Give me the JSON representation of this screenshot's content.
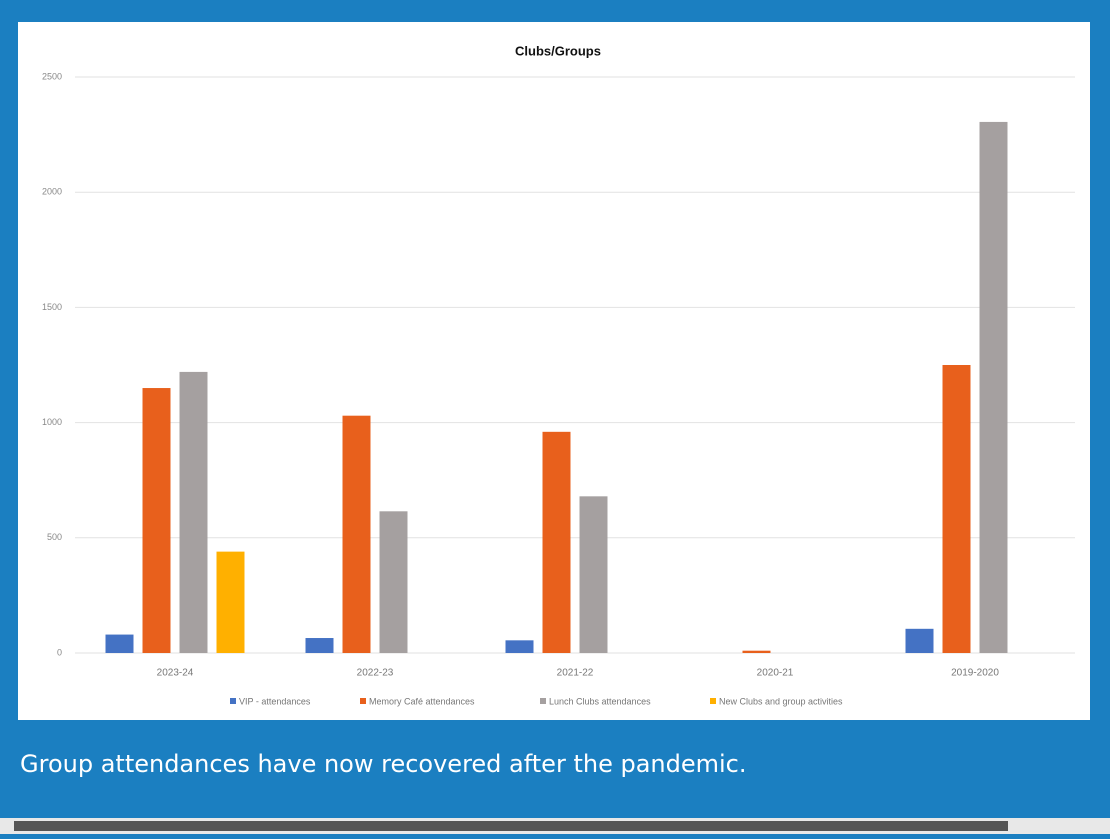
{
  "chart_data": {
    "type": "bar",
    "title": "Clubs/Groups",
    "categories": [
      "2023-24",
      "2022-23",
      "2021-22",
      "2020-21",
      "2019-2020"
    ],
    "series": [
      {
        "name": "VIP - attendances",
        "color": "#4472c4",
        "values": [
          80,
          65,
          55,
          null,
          105
        ]
      },
      {
        "name": "Memory Café attendances",
        "color": "#e8601c",
        "values": [
          1150,
          1030,
          960,
          10,
          1250
        ]
      },
      {
        "name": "Lunch Clubs attendances",
        "color": "#a5a0a0",
        "values": [
          1220,
          615,
          680,
          null,
          2305
        ]
      },
      {
        "name": "New Clubs and group activities",
        "color": "#ffb000",
        "values": [
          440,
          null,
          null,
          null,
          null
        ]
      }
    ],
    "ylim": [
      0,
      2500
    ],
    "yticks": [
      0,
      500,
      1000,
      1500,
      2000,
      2500
    ],
    "grid": true,
    "legend": "bottom"
  },
  "caption": "Group attendances have now recovered after the pandemic."
}
